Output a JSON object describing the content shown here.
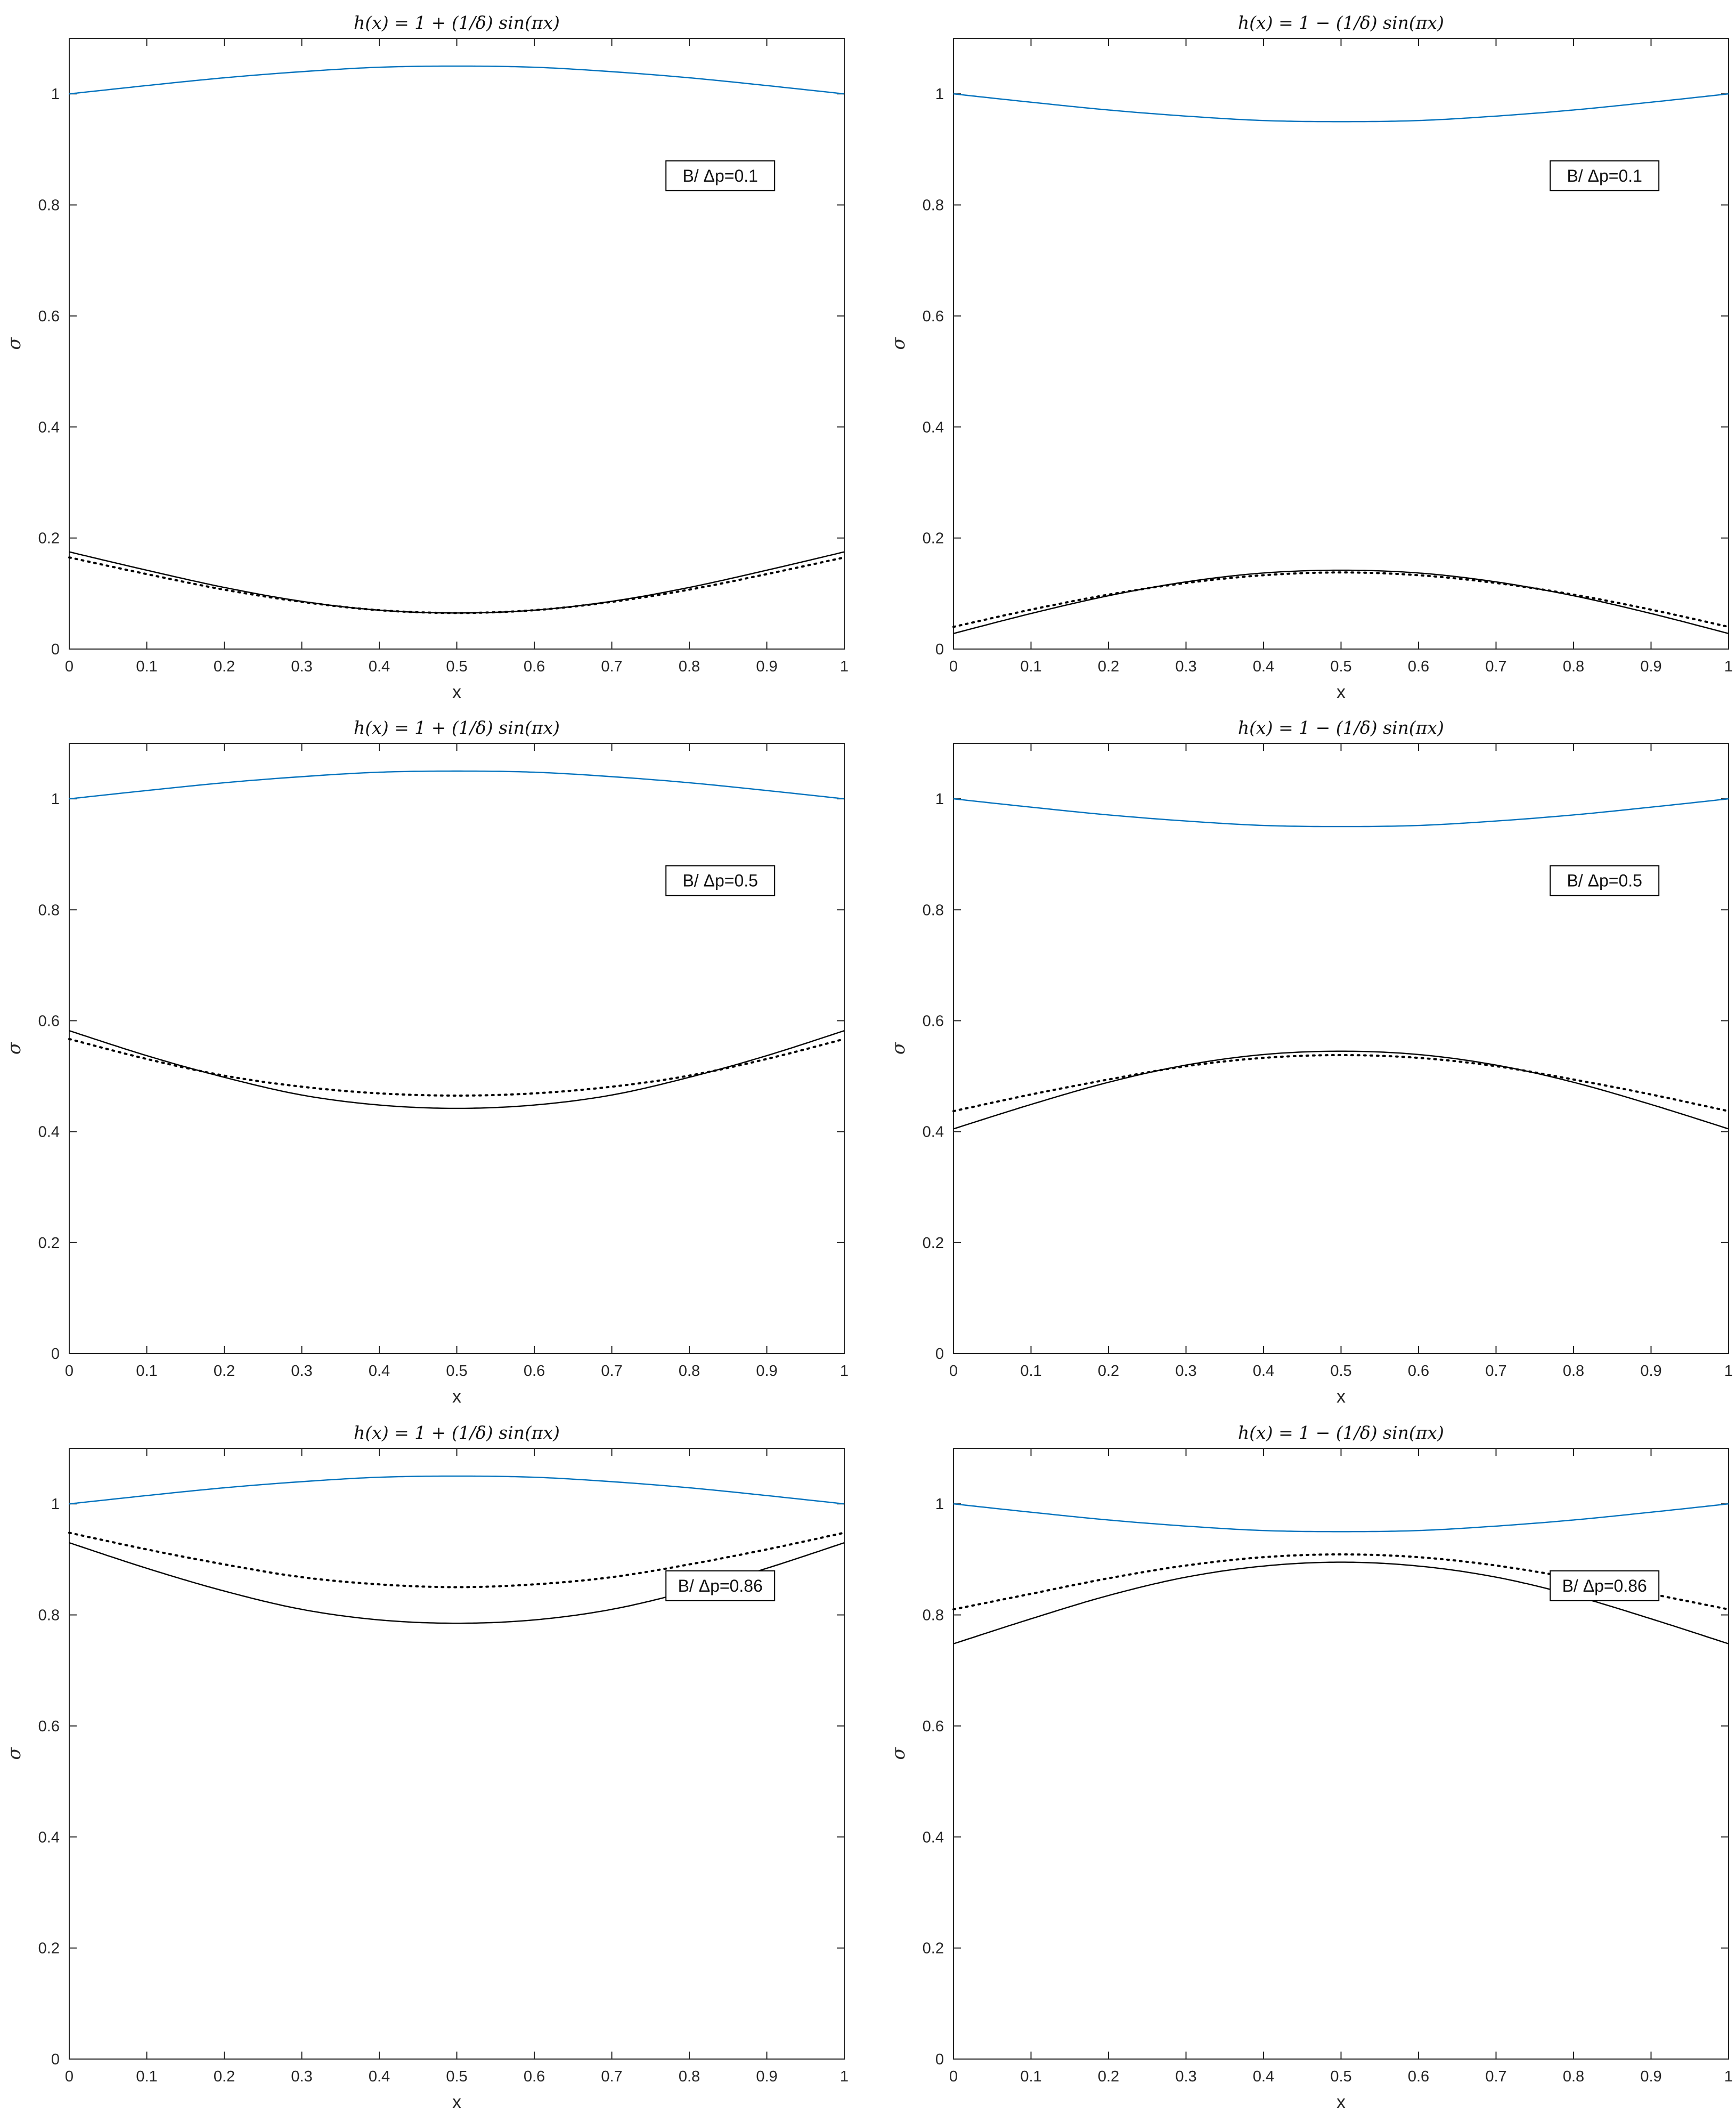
{
  "colors": {
    "upper": "#0072BD",
    "lower": "#000000",
    "axes": "#262626"
  },
  "chart_data": [
    {
      "type": "line",
      "title": "h(x) = 1 + (1/δ) sin(πx)",
      "xlabel": "x",
      "ylabel": "σ",
      "xlim": [
        0,
        1
      ],
      "ylim": [
        0,
        1.1
      ],
      "xticks": [
        "0",
        "0.1",
        "0.2",
        "0.3",
        "0.4",
        "0.5",
        "0.6",
        "0.7",
        "0.8",
        "0.9",
        "1"
      ],
      "yticks": [
        "0",
        "0.2",
        "0.4",
        "0.6",
        "0.8",
        "1"
      ],
      "annotation": "B/ Δp=0.1",
      "series": [
        {
          "name": "h(x)",
          "style": "solid",
          "color": "blue",
          "x": [
            0,
            0.1,
            0.2,
            0.3,
            0.4,
            0.5,
            0.6,
            0.7,
            0.8,
            0.9,
            1
          ],
          "y": [
            1.0,
            1.015,
            1.029,
            1.04,
            1.048,
            1.05,
            1.048,
            1.04,
            1.029,
            1.015,
            1.0
          ]
        },
        {
          "name": "solid",
          "style": "solid",
          "color": "black",
          "x": [
            0,
            0.1,
            0.2,
            0.3,
            0.4,
            0.5,
            0.6,
            0.7,
            0.8,
            0.9,
            1
          ],
          "y": [
            0.175,
            0.142,
            0.111,
            0.086,
            0.07,
            0.065,
            0.07,
            0.086,
            0.111,
            0.142,
            0.175
          ]
        },
        {
          "name": "dotted",
          "style": "dotted",
          "color": "black",
          "x": [
            0,
            0.1,
            0.2,
            0.3,
            0.4,
            0.5,
            0.6,
            0.7,
            0.8,
            0.9,
            1
          ],
          "y": [
            0.165,
            0.135,
            0.107,
            0.085,
            0.07,
            0.065,
            0.07,
            0.085,
            0.107,
            0.135,
            0.165
          ]
        }
      ]
    },
    {
      "type": "line",
      "title": "h(x) = 1 − (1/δ) sin(πx)",
      "xlabel": "x",
      "ylabel": "σ",
      "xlim": [
        0,
        1
      ],
      "ylim": [
        0,
        1.1
      ],
      "xticks": [
        "0",
        "0.1",
        "0.2",
        "0.3",
        "0.4",
        "0.5",
        "0.6",
        "0.7",
        "0.8",
        "0.9",
        "1"
      ],
      "yticks": [
        "0",
        "0.2",
        "0.4",
        "0.6",
        "0.8",
        "1"
      ],
      "annotation": "B/ Δp=0.1",
      "series": [
        {
          "name": "h(x)",
          "style": "solid",
          "color": "blue",
          "x": [
            0,
            0.1,
            0.2,
            0.3,
            0.4,
            0.5,
            0.6,
            0.7,
            0.8,
            0.9,
            1
          ],
          "y": [
            1.0,
            0.985,
            0.971,
            0.96,
            0.952,
            0.95,
            0.952,
            0.96,
            0.971,
            0.985,
            1.0
          ]
        },
        {
          "name": "solid",
          "style": "solid",
          "color": "black",
          "x": [
            0,
            0.1,
            0.2,
            0.3,
            0.4,
            0.5,
            0.6,
            0.7,
            0.8,
            0.9,
            1
          ],
          "y": [
            0.028,
            0.064,
            0.096,
            0.121,
            0.137,
            0.142,
            0.137,
            0.121,
            0.096,
            0.064,
            0.028
          ]
        },
        {
          "name": "dotted",
          "style": "dotted",
          "color": "black",
          "x": [
            0,
            0.1,
            0.2,
            0.3,
            0.4,
            0.5,
            0.6,
            0.7,
            0.8,
            0.9,
            1
          ],
          "y": [
            0.04,
            0.071,
            0.098,
            0.119,
            0.133,
            0.138,
            0.133,
            0.119,
            0.098,
            0.071,
            0.04
          ]
        }
      ]
    },
    {
      "type": "line",
      "title": "h(x) = 1 + (1/δ) sin(πx)",
      "xlabel": "x",
      "ylabel": "σ",
      "xlim": [
        0,
        1
      ],
      "ylim": [
        0,
        1.1
      ],
      "xticks": [
        "0",
        "0.1",
        "0.2",
        "0.3",
        "0.4",
        "0.5",
        "0.6",
        "0.7",
        "0.8",
        "0.9",
        "1"
      ],
      "yticks": [
        "0",
        "0.2",
        "0.4",
        "0.6",
        "0.8",
        "1"
      ],
      "annotation": "B/ Δp=0.5",
      "series": [
        {
          "name": "h(x)",
          "style": "solid",
          "color": "blue",
          "x": [
            0,
            0.1,
            0.2,
            0.3,
            0.4,
            0.5,
            0.6,
            0.7,
            0.8,
            0.9,
            1
          ],
          "y": [
            1.0,
            1.015,
            1.029,
            1.04,
            1.048,
            1.05,
            1.048,
            1.04,
            1.029,
            1.015,
            1.0
          ]
        },
        {
          "name": "solid",
          "style": "solid",
          "color": "black",
          "x": [
            0,
            0.1,
            0.2,
            0.3,
            0.4,
            0.5,
            0.6,
            0.7,
            0.8,
            0.9,
            1
          ],
          "y": [
            0.582,
            0.537,
            0.498,
            0.466,
            0.448,
            0.442,
            0.448,
            0.466,
            0.498,
            0.537,
            0.582
          ]
        },
        {
          "name": "dotted",
          "style": "dotted",
          "color": "black",
          "x": [
            0,
            0.1,
            0.2,
            0.3,
            0.4,
            0.5,
            0.6,
            0.7,
            0.8,
            0.9,
            1
          ],
          "y": [
            0.567,
            0.531,
            0.501,
            0.481,
            0.469,
            0.465,
            0.469,
            0.481,
            0.501,
            0.531,
            0.567
          ]
        }
      ]
    },
    {
      "type": "line",
      "title": "h(x) = 1 − (1/δ) sin(πx)",
      "xlabel": "x",
      "ylabel": "σ",
      "xlim": [
        0,
        1
      ],
      "ylim": [
        0,
        1.1
      ],
      "xticks": [
        "0",
        "0.1",
        "0.2",
        "0.3",
        "0.4",
        "0.5",
        "0.6",
        "0.7",
        "0.8",
        "0.9",
        "1"
      ],
      "yticks": [
        "0",
        "0.2",
        "0.4",
        "0.6",
        "0.8",
        "1"
      ],
      "annotation": "B/ Δp=0.5",
      "series": [
        {
          "name": "h(x)",
          "style": "solid",
          "color": "blue",
          "x": [
            0,
            0.1,
            0.2,
            0.3,
            0.4,
            0.5,
            0.6,
            0.7,
            0.8,
            0.9,
            1
          ],
          "y": [
            1.0,
            0.985,
            0.971,
            0.96,
            0.952,
            0.95,
            0.952,
            0.96,
            0.971,
            0.985,
            1.0
          ]
        },
        {
          "name": "solid",
          "style": "solid",
          "color": "black",
          "x": [
            0,
            0.1,
            0.2,
            0.3,
            0.4,
            0.5,
            0.6,
            0.7,
            0.8,
            0.9,
            1
          ],
          "y": [
            0.405,
            0.449,
            0.489,
            0.52,
            0.539,
            0.545,
            0.539,
            0.52,
            0.489,
            0.449,
            0.405
          ]
        },
        {
          "name": "dotted",
          "style": "dotted",
          "color": "black",
          "x": [
            0,
            0.1,
            0.2,
            0.3,
            0.4,
            0.5,
            0.6,
            0.7,
            0.8,
            0.9,
            1
          ],
          "y": [
            0.437,
            0.467,
            0.494,
            0.518,
            0.533,
            0.538,
            0.533,
            0.518,
            0.494,
            0.467,
            0.437
          ]
        }
      ]
    },
    {
      "type": "line",
      "title": "h(x) = 1 + (1/δ) sin(πx)",
      "xlabel": "x",
      "ylabel": "σ",
      "xlim": [
        0,
        1
      ],
      "ylim": [
        0,
        1.1
      ],
      "xticks": [
        "0",
        "0.1",
        "0.2",
        "0.3",
        "0.4",
        "0.5",
        "0.6",
        "0.7",
        "0.8",
        "0.9",
        "1"
      ],
      "yticks": [
        "0",
        "0.2",
        "0.4",
        "0.6",
        "0.8",
        "1"
      ],
      "annotation": "B/ Δp=0.86",
      "series": [
        {
          "name": "h(x)",
          "style": "solid",
          "color": "blue",
          "x": [
            0,
            0.1,
            0.2,
            0.3,
            0.4,
            0.5,
            0.6,
            0.7,
            0.8,
            0.9,
            1
          ],
          "y": [
            1.0,
            1.015,
            1.029,
            1.04,
            1.048,
            1.05,
            1.048,
            1.04,
            1.029,
            1.015,
            1.0
          ]
        },
        {
          "name": "solid",
          "style": "solid",
          "color": "black",
          "x": [
            0,
            0.1,
            0.2,
            0.3,
            0.4,
            0.5,
            0.6,
            0.7,
            0.8,
            0.9,
            1
          ],
          "y": [
            0.93,
            0.884,
            0.843,
            0.81,
            0.791,
            0.785,
            0.791,
            0.81,
            0.843,
            0.884,
            0.93
          ]
        },
        {
          "name": "dotted",
          "style": "dotted",
          "color": "black",
          "x": [
            0,
            0.1,
            0.2,
            0.3,
            0.4,
            0.5,
            0.6,
            0.7,
            0.8,
            0.9,
            1
          ],
          "y": [
            0.948,
            0.918,
            0.891,
            0.868,
            0.855,
            0.85,
            0.855,
            0.868,
            0.891,
            0.918,
            0.948
          ]
        }
      ]
    },
    {
      "type": "line",
      "title": "h(x) = 1 − (1/δ) sin(πx)",
      "xlabel": "x",
      "ylabel": "σ",
      "xlim": [
        0,
        1
      ],
      "ylim": [
        0,
        1.1
      ],
      "xticks": [
        "0",
        "0.1",
        "0.2",
        "0.3",
        "0.4",
        "0.5",
        "0.6",
        "0.7",
        "0.8",
        "0.9",
        "1"
      ],
      "yticks": [
        "0",
        "0.2",
        "0.4",
        "0.6",
        "0.8",
        "1"
      ],
      "annotation": "B/ Δp=0.86",
      "series": [
        {
          "name": "h(x)",
          "style": "solid",
          "color": "blue",
          "x": [
            0,
            0.1,
            0.2,
            0.3,
            0.4,
            0.5,
            0.6,
            0.7,
            0.8,
            0.9,
            1
          ],
          "y": [
            1.0,
            0.985,
            0.971,
            0.96,
            0.952,
            0.95,
            0.952,
            0.96,
            0.971,
            0.985,
            1.0
          ]
        },
        {
          "name": "solid",
          "style": "solid",
          "color": "black",
          "x": [
            0,
            0.1,
            0.2,
            0.3,
            0.4,
            0.5,
            0.6,
            0.7,
            0.8,
            0.9,
            1
          ],
          "y": [
            0.748,
            0.793,
            0.835,
            0.868,
            0.888,
            0.895,
            0.888,
            0.868,
            0.835,
            0.793,
            0.748
          ]
        },
        {
          "name": "dotted",
          "style": "dotted",
          "color": "black",
          "x": [
            0,
            0.1,
            0.2,
            0.3,
            0.4,
            0.5,
            0.6,
            0.7,
            0.8,
            0.9,
            1
          ],
          "y": [
            0.81,
            0.838,
            0.866,
            0.889,
            0.904,
            0.909,
            0.904,
            0.889,
            0.866,
            0.838,
            0.81
          ]
        }
      ]
    }
  ]
}
